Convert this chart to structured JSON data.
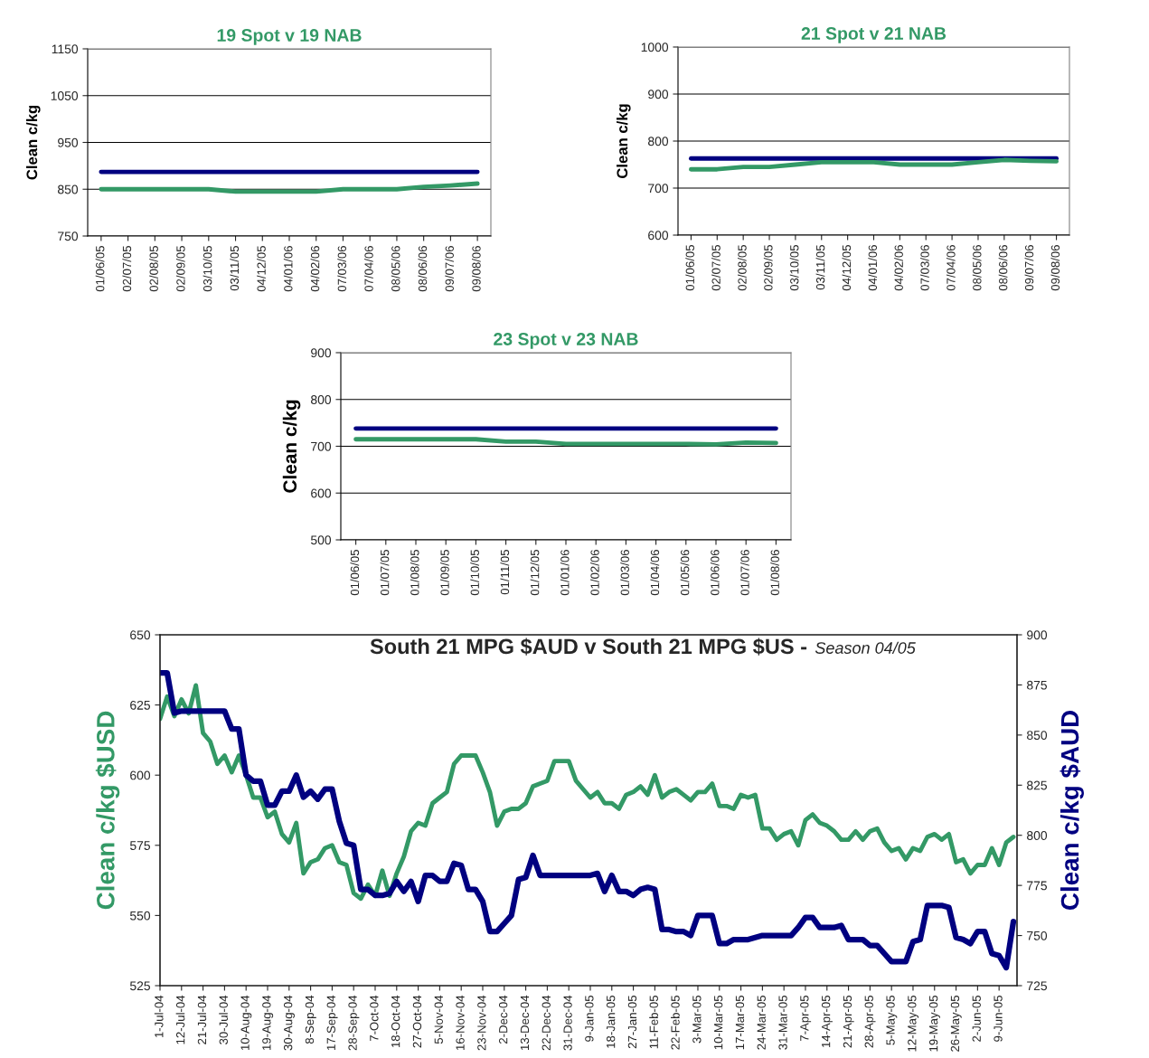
{
  "chart_data": [
    {
      "type": "line",
      "title": "19 Spot v 19 NAB",
      "ylabel": "Clean c/kg",
      "categories": [
        "01/06/05",
        "02/07/05",
        "02/08/05",
        "02/09/05",
        "03/10/05",
        "03/11/05",
        "04/12/05",
        "04/01/06",
        "04/02/06",
        "07/03/06",
        "07/04/06",
        "08/05/06",
        "08/06/06",
        "09/07/06",
        "09/08/06"
      ],
      "ylim": [
        750,
        1150
      ],
      "yticks": [
        750,
        850,
        950,
        1050,
        1150
      ],
      "grid": "y",
      "series": [
        {
          "color": "#000080",
          "values": [
            887,
            887,
            887,
            887,
            887,
            887,
            887,
            887,
            887,
            887,
            887,
            887,
            887,
            887,
            887
          ]
        },
        {
          "color": "#339966",
          "values": [
            850,
            850,
            850,
            850,
            850,
            845,
            845,
            845,
            845,
            850,
            850,
            850,
            855,
            858,
            862
          ]
        }
      ]
    },
    {
      "type": "line",
      "title": "21 Spot v 21 NAB",
      "ylabel": "Clean c/kg",
      "categories": [
        "01/06/05",
        "02/07/05",
        "02/08/05",
        "02/09/05",
        "03/10/05",
        "03/11/05",
        "04/12/05",
        "04/01/06",
        "04/02/06",
        "07/03/06",
        "07/04/06",
        "08/05/06",
        "08/06/06",
        "09/07/06",
        "09/08/06"
      ],
      "ylim": [
        600,
        1000
      ],
      "yticks": [
        600,
        700,
        800,
        900,
        1000
      ],
      "grid": "y",
      "series": [
        {
          "color": "#000080",
          "values": [
            763,
            763,
            763,
            763,
            763,
            763,
            763,
            763,
            763,
            763,
            763,
            763,
            763,
            763,
            763
          ]
        },
        {
          "color": "#339966",
          "values": [
            740,
            740,
            745,
            745,
            750,
            755,
            755,
            755,
            750,
            750,
            750,
            755,
            760,
            758,
            757
          ]
        }
      ]
    },
    {
      "type": "line",
      "title": "23 Spot v 23 NAB",
      "ylabel": "Clean c/kg",
      "categories": [
        "01/06/05",
        "01/07/05",
        "01/08/05",
        "01/09/05",
        "01/10/05",
        "01/11/05",
        "01/12/05",
        "01/01/06",
        "01/02/06",
        "01/03/06",
        "01/04/06",
        "01/05/06",
        "01/06/06",
        "01/07/06",
        "01/08/06"
      ],
      "ylim": [
        500,
        900
      ],
      "yticks": [
        500,
        600,
        700,
        800,
        900
      ],
      "grid": "y",
      "series": [
        {
          "color": "#000080",
          "values": [
            738,
            738,
            738,
            738,
            738,
            738,
            738,
            738,
            738,
            738,
            738,
            738,
            738,
            738,
            738
          ]
        },
        {
          "color": "#339966",
          "values": [
            715,
            715,
            715,
            715,
            715,
            710,
            710,
            705,
            705,
            705,
            705,
            705,
            704,
            708,
            707
          ]
        }
      ]
    },
    {
      "type": "line",
      "title": "South 21 MPG $AUD v South 21 MPG $US -",
      "subtitle": "Season 04/05",
      "ylabel": "Clean c/kg $USD",
      "y2label": "Clean c/kg $AUD",
      "grid": false,
      "categories": [
        "1-Jul-04",
        null,
        null,
        "12-Jul-04",
        null,
        null,
        "21-Jul-04",
        null,
        null,
        "30-Jul-04",
        null,
        null,
        "10-Aug-04",
        null,
        null,
        "19-Aug-04",
        null,
        null,
        "30-Aug-04",
        null,
        null,
        "8-Sep-04",
        null,
        null,
        "17-Sep-04",
        null,
        null,
        "28-Sep-04",
        null,
        null,
        "7-Oct-04",
        null,
        null,
        "18-Oct-04",
        null,
        null,
        "27-Oct-04",
        null,
        null,
        "5-Nov-04",
        null,
        null,
        "16-Nov-04",
        null,
        null,
        "23-Nov-04",
        null,
        null,
        "2-Dec-04",
        null,
        null,
        "13-Dec-04",
        null,
        null,
        "22-Dec-04",
        null,
        null,
        "31-Dec-04",
        null,
        null,
        "9-Jan-05",
        null,
        null,
        "18-Jan-05",
        null,
        null,
        "27-Jan-05",
        null,
        null,
        "11-Feb-05",
        null,
        null,
        "22-Feb-05",
        null,
        null,
        "3-Mar-05",
        null,
        null,
        "10-Mar-05",
        null,
        null,
        "17-Mar-05",
        null,
        null,
        "24-Mar-05",
        null,
        null,
        "31-Mar-05",
        null,
        null,
        "7-Apr-05",
        null,
        null,
        "14-Apr-05",
        null,
        null,
        "21-Apr-05",
        null,
        null,
        "28-Apr-05",
        null,
        null,
        "5-May-05",
        null,
        null,
        "12-May-05",
        null,
        null,
        "19-May-05",
        null,
        null,
        "26-May-05",
        null,
        null,
        "2-Jun-05",
        null,
        null,
        "9-Jun-05",
        null,
        null
      ],
      "ylim": [
        525,
        650
      ],
      "yticks": [
        525,
        550,
        575,
        600,
        625,
        650
      ],
      "y2lim": [
        725,
        900
      ],
      "y2ticks": [
        725,
        750,
        775,
        800,
        825,
        850,
        875,
        900
      ],
      "series": [
        {
          "color": "#339966",
          "values": [
            620,
            628,
            621,
            627,
            622,
            632,
            615,
            612,
            604,
            607,
            601,
            607,
            600,
            592,
            592,
            585,
            587,
            579,
            576,
            583,
            565,
            569,
            570,
            574,
            575,
            569,
            568,
            558,
            556,
            561,
            557,
            566,
            557,
            565,
            571,
            580,
            583,
            582,
            590,
            592,
            594,
            604,
            607,
            607,
            607,
            601,
            594,
            582,
            587,
            588,
            588,
            590,
            596,
            597,
            598,
            605,
            605,
            605,
            598,
            595,
            592,
            594,
            590,
            590,
            588,
            593,
            594,
            596,
            593,
            600,
            592,
            594,
            595,
            593,
            591,
            594,
            594,
            597,
            589,
            589,
            588,
            593,
            592,
            593,
            581,
            581,
            577,
            579,
            580,
            575,
            584,
            586,
            583,
            582,
            580,
            577,
            577,
            580,
            577,
            580,
            581,
            576,
            573,
            574,
            570,
            574,
            573,
            578,
            579,
            577,
            579,
            569,
            570,
            565,
            568,
            568,
            574,
            568,
            576,
            578
          ]
        },
        {
          "color": "#000080",
          "axis": "y2",
          "values": [
            881,
            881,
            861,
            862,
            862,
            862,
            862,
            862,
            862,
            862,
            853,
            853,
            830,
            827,
            827,
            815,
            815,
            822,
            822,
            830,
            819,
            822,
            818,
            823,
            823,
            807,
            796,
            795,
            773,
            773,
            770,
            770,
            771,
            777,
            772,
            777,
            767,
            780,
            780,
            777,
            777,
            786,
            785,
            773,
            773,
            767,
            752,
            752,
            756,
            760,
            778,
            779,
            790,
            780,
            780,
            780,
            780,
            780,
            780,
            780,
            780,
            781,
            772,
            780,
            772,
            772,
            770,
            773,
            774,
            773,
            753,
            753,
            752,
            752,
            750,
            760,
            760,
            760,
            746,
            746,
            748,
            748,
            748,
            749,
            750,
            750,
            750,
            750,
            750,
            754,
            759,
            759,
            754,
            754,
            754,
            755,
            748,
            748,
            748,
            745,
            745,
            741,
            737,
            737,
            737,
            747,
            748,
            765,
            765,
            765,
            764,
            749,
            748,
            746,
            752,
            752,
            741,
            740,
            734,
            757
          ]
        }
      ]
    }
  ]
}
